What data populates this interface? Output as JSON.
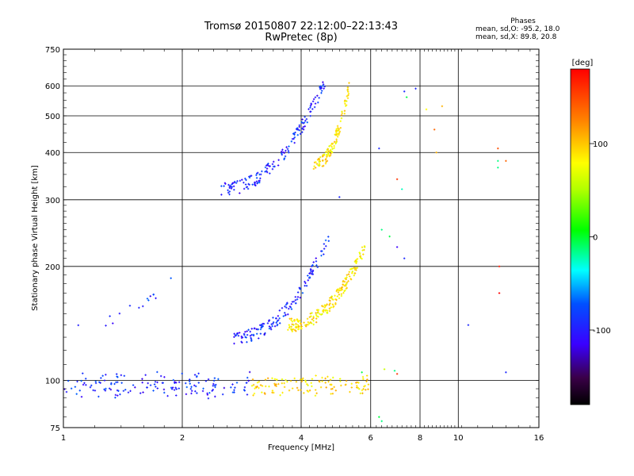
{
  "header": {
    "title": "Tromsø 20150807 22:12:00–22:13:43",
    "subtitle": "RwPretec (8p)"
  },
  "phases_box": {
    "heading": "Phases",
    "line_o": "mean, sd,O: -95.2, 18.0",
    "line_x": "mean, sd,X:  89.8, 20.8"
  },
  "chart_data": {
    "type": "scatter",
    "xlabel": "Frequency [MHz]",
    "ylabel": "Stationary phase Virtual Height [km]",
    "x_scale": "log",
    "y_scale": "log",
    "xlim": [
      1,
      16
    ],
    "ylim": [
      75,
      750
    ],
    "x_ticks": [
      1,
      2,
      4,
      6,
      8,
      10,
      16
    ],
    "x_tick_labels": [
      "1",
      "2",
      "4",
      "6",
      "8",
      "10",
      "16"
    ],
    "y_ticks": [
      75,
      100,
      200,
      300,
      400,
      500,
      600,
      750
    ],
    "y_tick_labels": [
      "75",
      "100",
      "200",
      "300",
      "400",
      "500",
      "600",
      "750"
    ],
    "grid": true,
    "colorbar": {
      "label": "[deg]",
      "range": [
        -180,
        180
      ],
      "ticks": [
        100,
        0,
        -100
      ],
      "tick_labels": [
        "100",
        "0",
        "-100"
      ]
    },
    "clusters": [
      {
        "name": "E-layer trace blue",
        "x_range": [
          1.0,
          3.0
        ],
        "y_range": [
          92,
          102
        ],
        "phase": -100,
        "count": 150
      },
      {
        "name": "E-layer trace yellow",
        "x_range": [
          3.0,
          6.0
        ],
        "y_range": [
          94,
          100
        ],
        "phase": 95,
        "count": 120
      },
      {
        "name": "F-layer trace blue",
        "x_range": [
          2.7,
          4.7
        ],
        "y_range": [
          130,
          240
        ],
        "phase": -100,
        "count": 150
      },
      {
        "name": "F-layer trace yellow",
        "x_range": [
          3.7,
          5.8
        ],
        "y_range": [
          140,
          225
        ],
        "phase": 90,
        "count": 200
      },
      {
        "name": "Multi-hop trace blue",
        "x_range": [
          2.5,
          4.6
        ],
        "y_range": [
          320,
          620
        ],
        "phase": -100,
        "count": 160
      },
      {
        "name": "Multi-hop trace yellow",
        "x_range": [
          4.3,
          5.3
        ],
        "y_range": [
          370,
          600
        ],
        "phase": 90,
        "count": 110
      },
      {
        "name": "Low frequency blue spots",
        "x_range": [
          1.08,
          1.9
        ],
        "y_range": [
          140,
          190
        ],
        "phase": -100,
        "count": 15
      }
    ],
    "isolated_points": [
      {
        "x": 7.3,
        "y": 580,
        "phase": -100
      },
      {
        "x": 7.8,
        "y": 590,
        "phase": -100
      },
      {
        "x": 7.4,
        "y": 560,
        "phase": -10
      },
      {
        "x": 8.3,
        "y": 520,
        "phase": 80
      },
      {
        "x": 9.1,
        "y": 530,
        "phase": 110
      },
      {
        "x": 8.7,
        "y": 460,
        "phase": 140
      },
      {
        "x": 8.8,
        "y": 400,
        "phase": 110
      },
      {
        "x": 7.0,
        "y": 340,
        "phase": 160
      },
      {
        "x": 7.2,
        "y": 320,
        "phase": -30
      },
      {
        "x": 6.3,
        "y": 410,
        "phase": -100
      },
      {
        "x": 5.0,
        "y": 305,
        "phase": -100
      },
      {
        "x": 6.4,
        "y": 250,
        "phase": -20
      },
      {
        "x": 6.7,
        "y": 240,
        "phase": -10
      },
      {
        "x": 7.0,
        "y": 225,
        "phase": -120
      },
      {
        "x": 7.3,
        "y": 210,
        "phase": -100
      },
      {
        "x": 10.6,
        "y": 140,
        "phase": -100
      },
      {
        "x": 12.6,
        "y": 410,
        "phase": 150
      },
      {
        "x": 12.6,
        "y": 380,
        "phase": -20
      },
      {
        "x": 12.6,
        "y": 365,
        "phase": -20
      },
      {
        "x": 13.2,
        "y": 380,
        "phase": 140
      },
      {
        "x": 12.7,
        "y": 200,
        "phase": 170
      },
      {
        "x": 12.7,
        "y": 170,
        "phase": 180
      },
      {
        "x": 13.2,
        "y": 105,
        "phase": -100
      },
      {
        "x": 6.3,
        "y": 80,
        "phase": -10
      },
      {
        "x": 6.4,
        "y": 78,
        "phase": -20
      },
      {
        "x": 6.9,
        "y": 106,
        "phase": -20
      },
      {
        "x": 7.0,
        "y": 104,
        "phase": 160
      },
      {
        "x": 6.5,
        "y": 107,
        "phase": 60
      },
      {
        "x": 5.7,
        "y": 105,
        "phase": -10
      }
    ]
  }
}
